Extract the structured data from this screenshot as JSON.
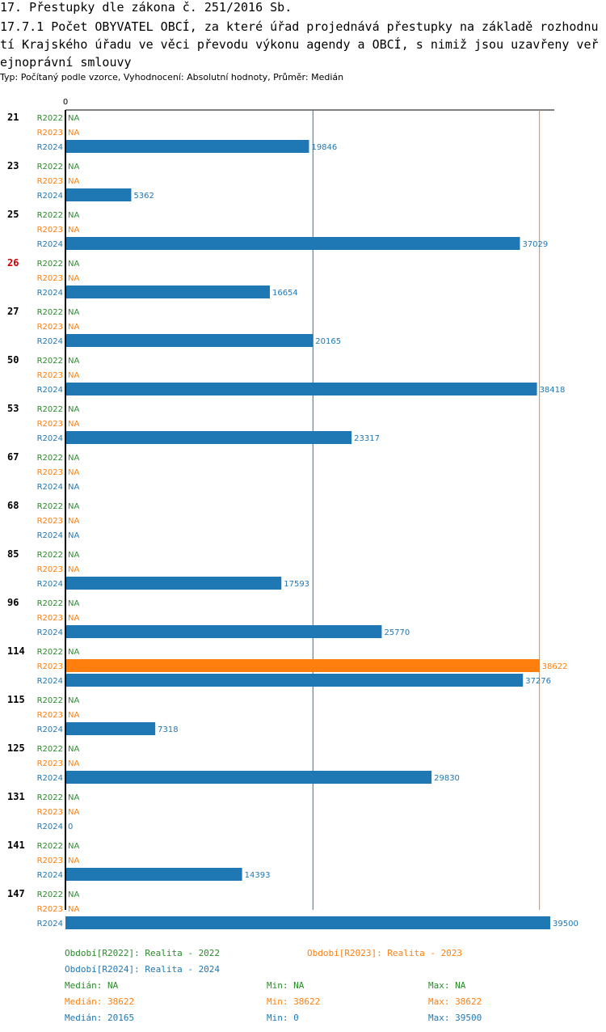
{
  "header": {
    "title": "17. Přestupky dle zákona č. 251/2016 Sb.",
    "subtitle": "17.7.1 Počet OBYVATEL OBCÍ, za které úřad projednává přestupky na základě rozhodnutí Krajského úřadu ve věci převodu výkonu agendy a OBCÍ, s nimiž jsou uzavřeny veřejnoprávní smlouvy",
    "type_line": "Typ: Počítaný podle vzorce, Vyhodnocení: Absolutní hodnoty, Průměr: Medián"
  },
  "colors": {
    "R2022": "#2a8a2a",
    "R2023": "#ff7f0e",
    "R2024": "#1f77b4",
    "highlight_group": "#cc0000",
    "axis": "#000000"
  },
  "chart_data": {
    "type": "bar",
    "orientation": "horizontal",
    "axis_zero_label": "0",
    "xlim": [
      0,
      39500
    ],
    "series_names": [
      "R2022",
      "R2023",
      "R2024"
    ],
    "groups": [
      {
        "label": "21",
        "highlight": false,
        "values": [
          null,
          null,
          19846
        ]
      },
      {
        "label": "23",
        "highlight": false,
        "values": [
          null,
          null,
          5362
        ]
      },
      {
        "label": "25",
        "highlight": false,
        "values": [
          null,
          null,
          37029
        ]
      },
      {
        "label": "26",
        "highlight": true,
        "values": [
          null,
          null,
          16654
        ]
      },
      {
        "label": "27",
        "highlight": false,
        "values": [
          null,
          null,
          20165
        ]
      },
      {
        "label": "50",
        "highlight": false,
        "values": [
          null,
          null,
          38418
        ]
      },
      {
        "label": "53",
        "highlight": false,
        "values": [
          null,
          null,
          23317
        ]
      },
      {
        "label": "67",
        "highlight": false,
        "values": [
          null,
          null,
          null
        ]
      },
      {
        "label": "68",
        "highlight": false,
        "values": [
          null,
          null,
          null
        ]
      },
      {
        "label": "85",
        "highlight": false,
        "values": [
          null,
          null,
          17593
        ]
      },
      {
        "label": "96",
        "highlight": false,
        "values": [
          null,
          null,
          25770
        ]
      },
      {
        "label": "114",
        "highlight": false,
        "values": [
          null,
          38622,
          37276
        ]
      },
      {
        "label": "115",
        "highlight": false,
        "values": [
          null,
          null,
          7318
        ]
      },
      {
        "label": "125",
        "highlight": false,
        "values": [
          null,
          null,
          29830
        ]
      },
      {
        "label": "131",
        "highlight": false,
        "values": [
          null,
          null,
          0
        ]
      },
      {
        "label": "141",
        "highlight": false,
        "values": [
          null,
          null,
          14393
        ]
      },
      {
        "label": "147",
        "highlight": false,
        "values": [
          null,
          null,
          39500
        ]
      }
    ],
    "na_label": "NA",
    "reference_lines": [
      {
        "series": "R2024",
        "kind": "median",
        "value": 20165
      },
      {
        "series": "R2023",
        "kind": "median",
        "value": 38622
      }
    ]
  },
  "legend": {
    "r2022": "Období[R2022]: Realita - 2022",
    "r2023": "Období[R2023]: Realita - 2023",
    "r2024": "Období[R2024]: Realita - 2024"
  },
  "stats": [
    {
      "series": "R2022",
      "median": "Medián: NA",
      "min": "Min: NA",
      "max": "Max: NA"
    },
    {
      "series": "R2023",
      "median": "Medián: 38622",
      "min": "Min: 38622",
      "max": "Max: 38622"
    },
    {
      "series": "R2024",
      "median": "Medián: 20165",
      "min": "Min: 0",
      "max": "Max: 39500"
    }
  ]
}
